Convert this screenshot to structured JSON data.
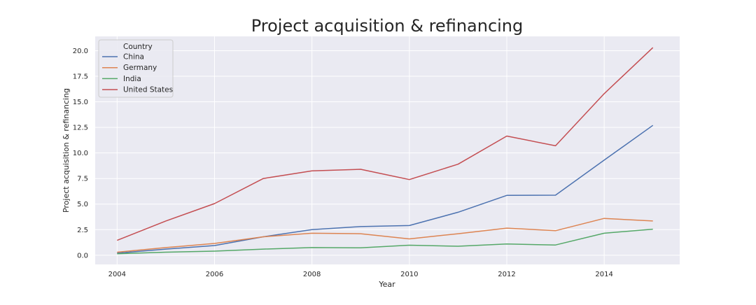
{
  "chart_data": {
    "type": "line",
    "title": "Project acquisition & refinancing",
    "xlabel": "Year",
    "ylabel": "Project acquisition & refinancing",
    "x": [
      2004,
      2005,
      2006,
      2007,
      2008,
      2009,
      2010,
      2011,
      2012,
      2013,
      2014,
      2015
    ],
    "xlim": [
      2003.55,
      2015.55
    ],
    "ylim": [
      -0.9,
      21.4
    ],
    "x_ticks": [
      "2004",
      "2006",
      "2008",
      "2010",
      "2012",
      "2014"
    ],
    "x_tick_values": [
      2004,
      2006,
      2008,
      2010,
      2012,
      2014
    ],
    "y_ticks": [
      "0.0",
      "2.5",
      "5.0",
      "7.5",
      "10.0",
      "12.5",
      "15.0",
      "17.5",
      "20.0"
    ],
    "y_tick_values": [
      0,
      2.5,
      5,
      7.5,
      10,
      12.5,
      15,
      17.5,
      20
    ],
    "grid": true,
    "legend": {
      "title": "Country",
      "placement": "top-left"
    },
    "series": [
      {
        "name": "China",
        "color": "#4c72b0",
        "values": [
          0.2,
          0.6,
          0.95,
          1.8,
          2.5,
          2.8,
          2.9,
          4.2,
          5.85,
          5.87,
          9.3,
          12.7
        ]
      },
      {
        "name": "Germany",
        "color": "#dd8452",
        "values": [
          0.3,
          0.75,
          1.15,
          1.8,
          2.15,
          2.1,
          1.6,
          2.1,
          2.65,
          2.4,
          3.6,
          3.35
        ]
      },
      {
        "name": "India",
        "color": "#55a868",
        "values": [
          0.15,
          0.3,
          0.4,
          0.6,
          0.75,
          0.72,
          0.98,
          0.88,
          1.1,
          1.0,
          2.15,
          2.55
        ]
      },
      {
        "name": "United States",
        "color": "#c44e52",
        "values": [
          1.45,
          3.35,
          5.05,
          7.5,
          8.25,
          8.4,
          7.4,
          8.9,
          11.65,
          10.7,
          15.8,
          20.3
        ]
      }
    ]
  }
}
